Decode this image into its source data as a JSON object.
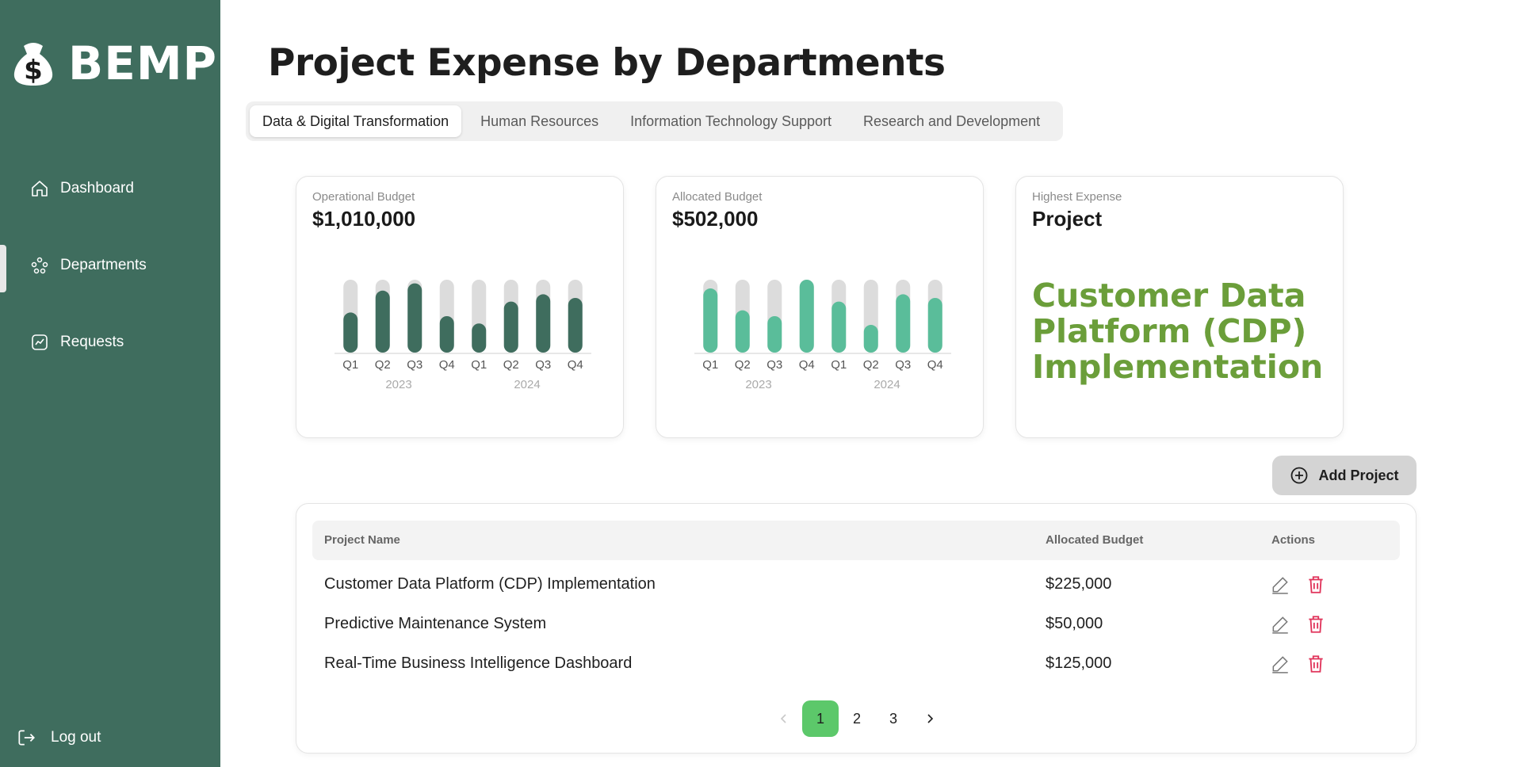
{
  "app": {
    "name": "BEMP"
  },
  "sidebar": {
    "items": [
      {
        "label": "Dashboard",
        "icon": "home-icon"
      },
      {
        "label": "Departments",
        "icon": "people-icon",
        "active": true
      },
      {
        "label": "Requests",
        "icon": "chart-line-icon"
      }
    ],
    "logout_label": "Log out"
  },
  "header": {
    "title": "Project Expense by Departments"
  },
  "tabs": [
    {
      "label": "Data & Digital Transformation",
      "active": true
    },
    {
      "label": "Human Resources"
    },
    {
      "label": "Information Technology Support"
    },
    {
      "label": "Research and Development"
    }
  ],
  "cards": {
    "operational": {
      "label": "Operational Budget",
      "value": "$1,010,000"
    },
    "allocated": {
      "label": "Allocated Budget",
      "value": "$502,000"
    },
    "highest": {
      "label": "Highest Expense",
      "value": "Project",
      "project": "Customer Data Platform (CDP) Implementation"
    }
  },
  "chart_data": [
    {
      "type": "bar",
      "categories": [
        "Q1",
        "Q2",
        "Q3",
        "Q4",
        "Q1",
        "Q2",
        "Q3",
        "Q4"
      ],
      "groups": [
        {
          "label": "2023",
          "span": [
            0,
            3
          ]
        },
        {
          "label": "2024",
          "span": [
            4,
            7
          ]
        }
      ],
      "values": [
        0.55,
        0.85,
        0.95,
        0.5,
        0.4,
        0.7,
        0.8,
        0.75
      ],
      "ylim": [
        0,
        1
      ],
      "color": "#3f6d5e",
      "track_color": "#dcdcdc"
    },
    {
      "type": "bar",
      "categories": [
        "Q1",
        "Q2",
        "Q3",
        "Q4",
        "Q1",
        "Q2",
        "Q3",
        "Q4"
      ],
      "groups": [
        {
          "label": "2023",
          "span": [
            0,
            3
          ]
        },
        {
          "label": "2024",
          "span": [
            4,
            7
          ]
        }
      ],
      "values": [
        0.88,
        0.58,
        0.5,
        1.0,
        0.7,
        0.38,
        0.8,
        0.75
      ],
      "ylim": [
        0,
        1
      ],
      "color": "#5abd9a",
      "track_color": "#dcdcdc"
    }
  ],
  "add_button": {
    "label": "Add Project"
  },
  "table": {
    "columns": [
      "Project Name",
      "Allocated Budget",
      "Actions"
    ],
    "rows": [
      {
        "name": "Customer Data Platform (CDP) Implementation",
        "budget": "$225,000"
      },
      {
        "name": "Predictive Maintenance System",
        "budget": "$50,000"
      },
      {
        "name": "Real-Time Business Intelligence Dashboard",
        "budget": "$125,000"
      }
    ]
  },
  "pagination": {
    "pages": [
      "1",
      "2",
      "3"
    ],
    "current": "1"
  },
  "colors": {
    "sidebar": "#3f6d5e",
    "accent_green": "#6b9e3a",
    "page_active": "#5cc86a",
    "delete": "#e0335a"
  }
}
